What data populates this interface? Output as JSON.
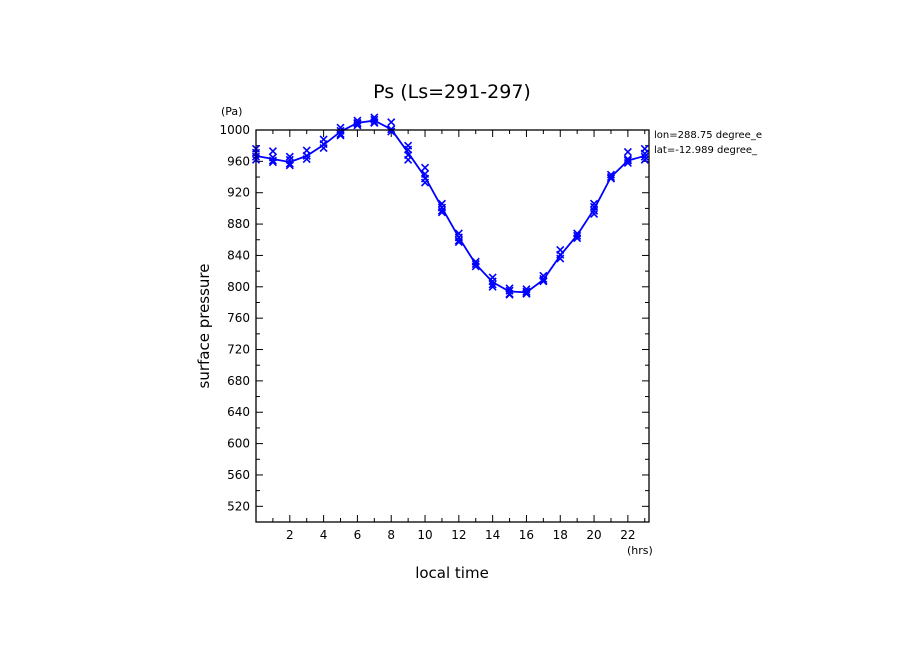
{
  "chart_data": {
    "type": "line",
    "title": "Ps (Ls=291-297)",
    "xlabel": "local time",
    "ylabel": "surface pressure",
    "x_unit": "(hrs)",
    "y_unit": "(Pa)",
    "xlim": [
      0,
      23.25
    ],
    "ylim": [
      500,
      1000
    ],
    "x_ticks": [
      2,
      4,
      6,
      8,
      10,
      12,
      14,
      16,
      18,
      20,
      22
    ],
    "y_ticks": [
      520,
      560,
      600,
      640,
      680,
      720,
      760,
      800,
      840,
      880,
      920,
      960,
      1000
    ],
    "annotations": [
      "lon=288.75 degree_e",
      "lat=-12.989 degree_"
    ],
    "line_color": "#0000ff",
    "series": [
      {
        "line": {
          "x": [
            0,
            1,
            2,
            3,
            4,
            5,
            6,
            7,
            8,
            9,
            10,
            11,
            12,
            13,
            14,
            15,
            16,
            17,
            18,
            19,
            20,
            21,
            22,
            23
          ],
          "y": [
            967,
            963,
            959,
            967,
            981,
            998,
            1009,
            1012,
            1001,
            971,
            940,
            901,
            863,
            829,
            806,
            794,
            793,
            809,
            840,
            866,
            899,
            940,
            961,
            967
          ]
        },
        "samples": {
          "x": [
            0,
            0,
            0,
            0,
            1,
            1,
            1,
            1,
            2,
            2,
            2,
            2,
            3,
            3,
            3,
            4,
            4,
            4,
            5,
            5,
            5,
            5,
            6,
            6,
            6,
            6,
            7,
            7,
            7,
            7,
            8,
            8,
            8,
            9,
            9,
            9,
            9,
            10,
            10,
            10,
            10,
            11,
            11,
            11,
            11,
            12,
            12,
            12,
            12,
            13,
            13,
            13,
            14,
            14,
            14,
            14,
            15,
            15,
            15,
            15,
            16,
            16,
            16,
            16,
            17,
            17,
            17,
            17,
            18,
            18,
            18,
            19,
            19,
            19,
            20,
            20,
            20,
            20,
            21,
            21,
            21,
            22,
            22,
            22,
            22,
            23,
            23,
            23,
            23
          ],
          "y": [
            976,
            971,
            966,
            962,
            973,
            965,
            961,
            959,
            966,
            962,
            957,
            955,
            974,
            967,
            963,
            988,
            982,
            977,
            1003,
            999,
            995,
            993,
            1012,
            1009,
            1006,
            1008,
            1016,
            1013,
            1010,
            1009,
            1010,
            1001,
            998,
            980,
            975,
            968,
            962,
            952,
            944,
            938,
            933,
            906,
            901,
            897,
            895,
            868,
            863,
            859,
            857,
            832,
            829,
            826,
            812,
            807,
            803,
            800,
            798,
            795,
            791,
            790,
            797,
            794,
            791,
            792,
            814,
            810,
            807,
            808,
            847,
            841,
            836,
            868,
            865,
            862,
            906,
            902,
            897,
            893,
            943,
            940,
            938,
            972,
            963,
            961,
            958,
            976,
            970,
            966,
            962
          ]
        }
      }
    ]
  }
}
